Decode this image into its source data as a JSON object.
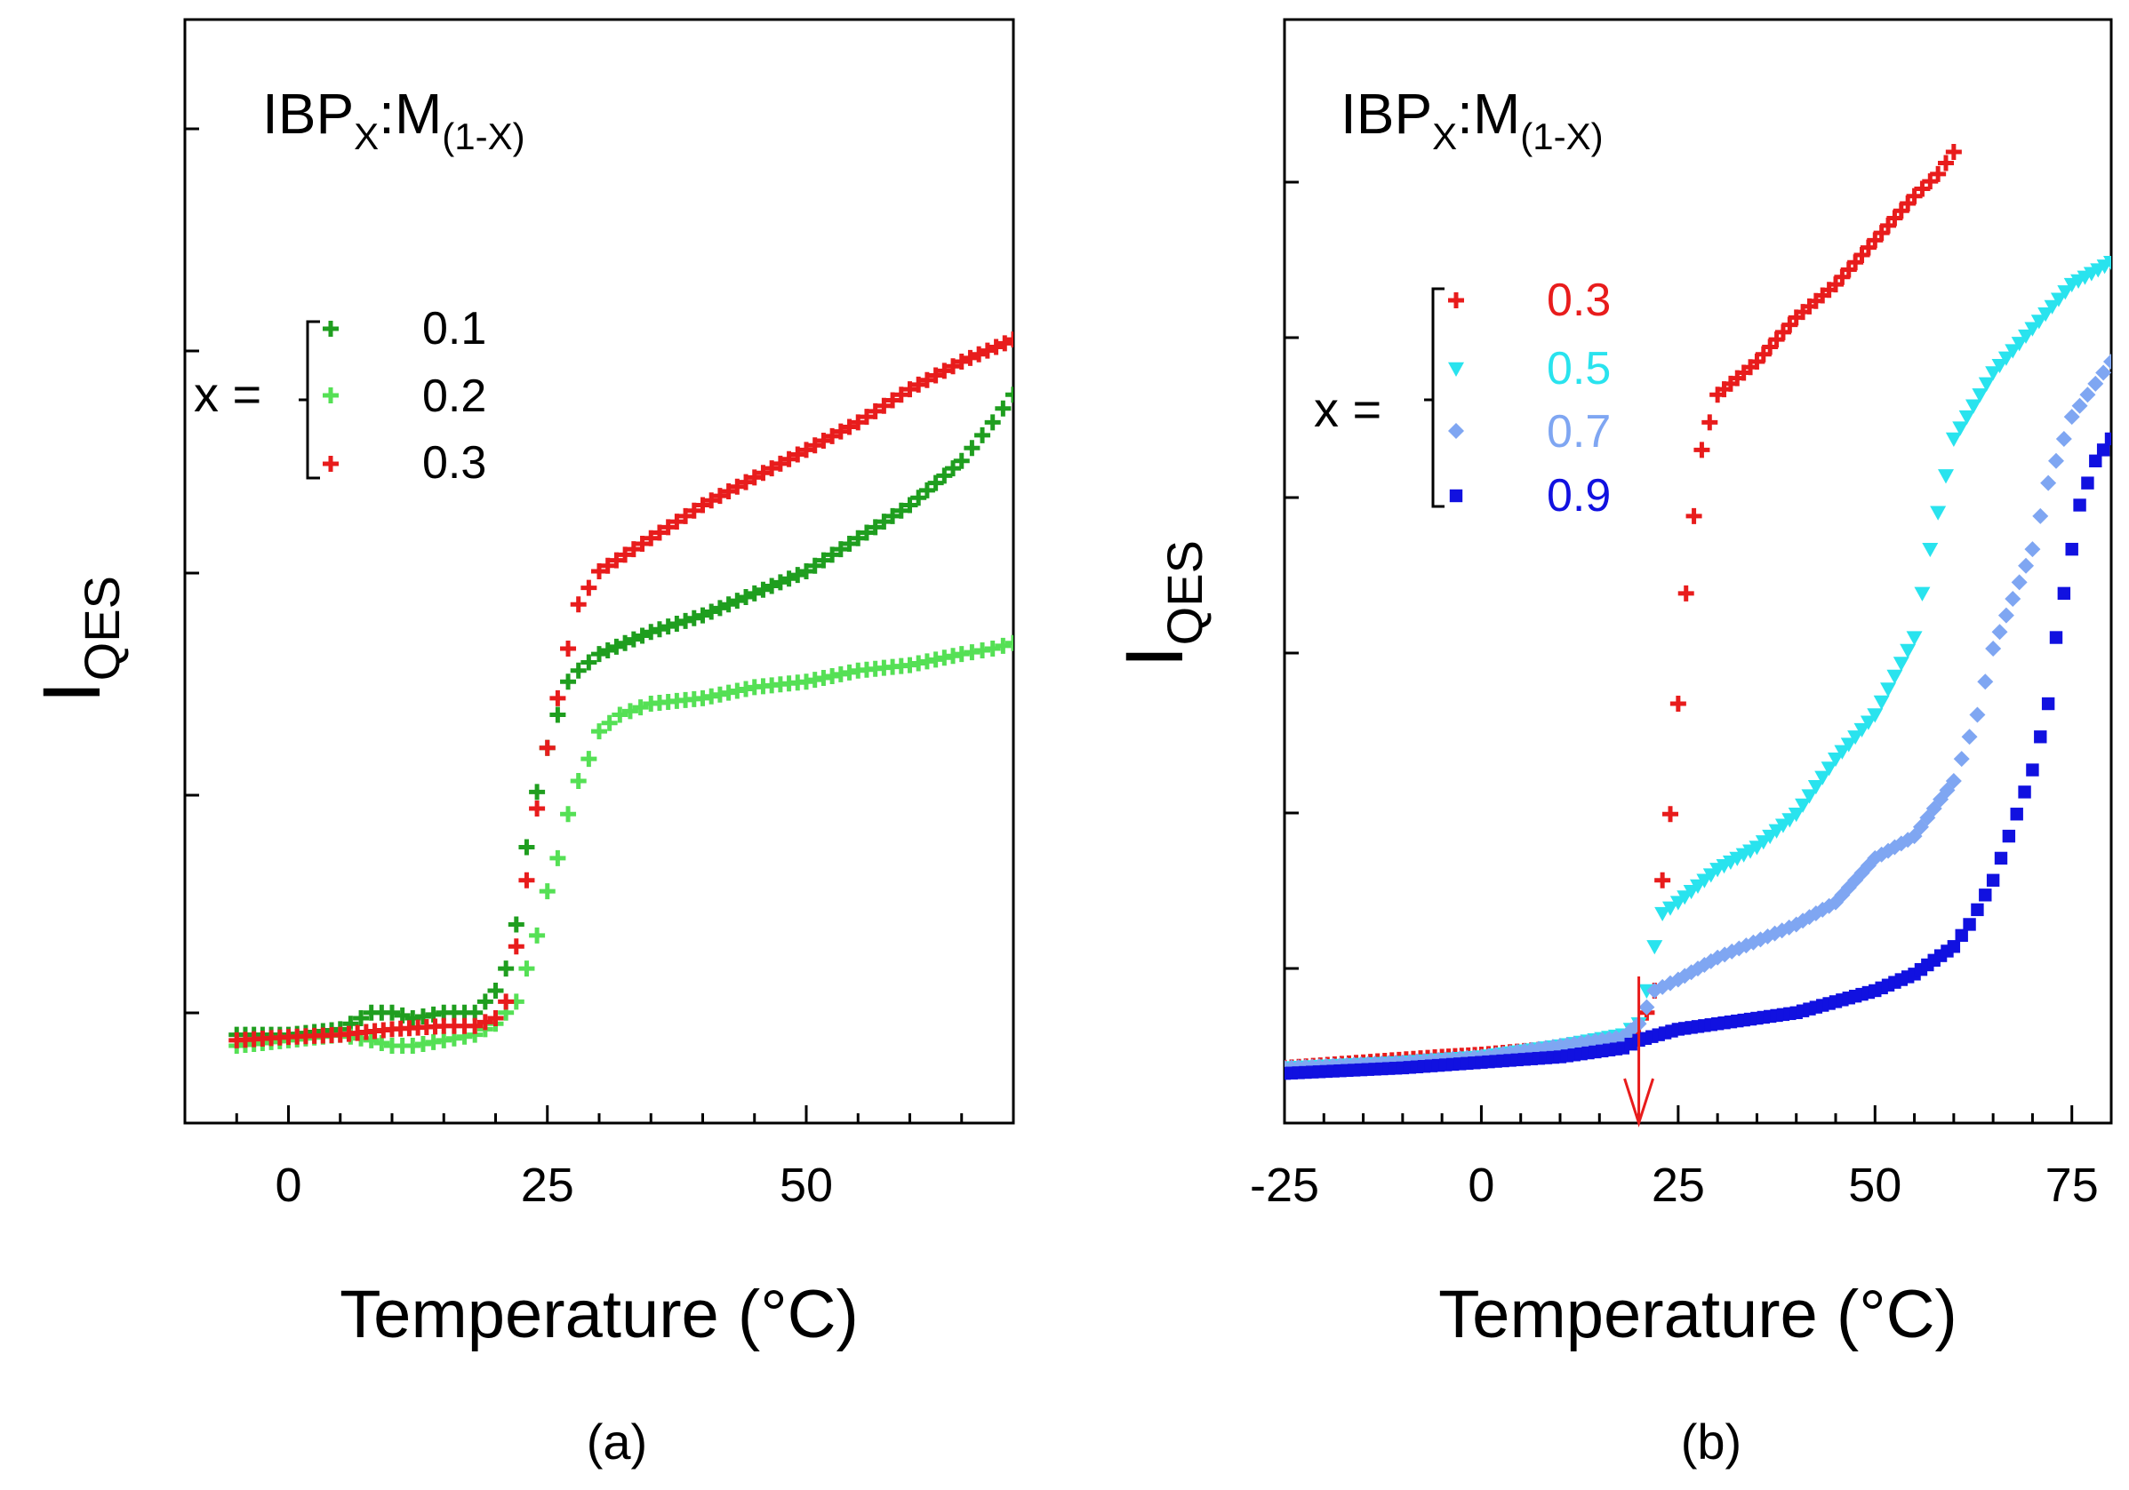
{
  "chart_data": [
    {
      "type": "scatter",
      "panel_label": "(a)",
      "title": "IBP",
      "title_sub1": "X",
      "title_mid": ":M",
      "title_sub2": "(1-X)",
      "xlabel": "Temperature (°C)",
      "ylabel": "I",
      "ylabel_sub": "QES",
      "xlim": [
        -10,
        70
      ],
      "ylim": [
        0,
        1
      ],
      "x_ticks": [
        0,
        25,
        50
      ],
      "y_axis_tick_labels": false,
      "legend": {
        "prefix": "x =",
        "placement": "left"
      },
      "series": [
        {
          "name": "0.1",
          "color": "#1f9e1f",
          "marker": "plus",
          "points": [
            [
              -5,
              0.08
            ],
            [
              0,
              0.08
            ],
            [
              5,
              0.085
            ],
            [
              8,
              0.1
            ],
            [
              10,
              0.1
            ],
            [
              12,
              0.095
            ],
            [
              15,
              0.1
            ],
            [
              18,
              0.1
            ],
            [
              20,
              0.12
            ],
            [
              21,
              0.14
            ],
            [
              22,
              0.18
            ],
            [
              23,
              0.25
            ],
            [
              24,
              0.3
            ],
            [
              25,
              0.34
            ],
            [
              26,
              0.37
            ],
            [
              27,
              0.4
            ],
            [
              28,
              0.41
            ],
            [
              30,
              0.425
            ],
            [
              35,
              0.445
            ],
            [
              40,
              0.46
            ],
            [
              45,
              0.48
            ],
            [
              50,
              0.5
            ],
            [
              55,
              0.53
            ],
            [
              60,
              0.56
            ],
            [
              65,
              0.6
            ],
            [
              68,
              0.635
            ],
            [
              70,
              0.66
            ]
          ]
        },
        {
          "name": "0.2",
          "color": "#55e055",
          "marker": "plus",
          "points": [
            [
              -5,
              0.07
            ],
            [
              0,
              0.075
            ],
            [
              5,
              0.08
            ],
            [
              8,
              0.075
            ],
            [
              10,
              0.07
            ],
            [
              12,
              0.07
            ],
            [
              15,
              0.075
            ],
            [
              18,
              0.08
            ],
            [
              20,
              0.09
            ],
            [
              22,
              0.11
            ],
            [
              23,
              0.14
            ],
            [
              24,
              0.17
            ],
            [
              25,
              0.21
            ],
            [
              26,
              0.24
            ],
            [
              27,
              0.28
            ],
            [
              28,
              0.31
            ],
            [
              29,
              0.33
            ],
            [
              30,
              0.355
            ],
            [
              32,
              0.37
            ],
            [
              35,
              0.38
            ],
            [
              40,
              0.385
            ],
            [
              45,
              0.395
            ],
            [
              50,
              0.4
            ],
            [
              55,
              0.41
            ],
            [
              60,
              0.415
            ],
            [
              65,
              0.425
            ],
            [
              68,
              0.43
            ],
            [
              70,
              0.435
            ]
          ]
        },
        {
          "name": "0.3",
          "color": "#e81c1c",
          "marker": "plus",
          "points": [
            [
              -5,
              0.075
            ],
            [
              0,
              0.078
            ],
            [
              5,
              0.08
            ],
            [
              10,
              0.085
            ],
            [
              15,
              0.088
            ],
            [
              18,
              0.088
            ],
            [
              20,
              0.095
            ],
            [
              21,
              0.11
            ],
            [
              22,
              0.16
            ],
            [
              23,
              0.22
            ],
            [
              24,
              0.285
            ],
            [
              25,
              0.34
            ],
            [
              26,
              0.385
            ],
            [
              27,
              0.43
            ],
            [
              28,
              0.47
            ],
            [
              30,
              0.5
            ],
            [
              35,
              0.53
            ],
            [
              40,
              0.56
            ],
            [
              45,
              0.585
            ],
            [
              50,
              0.61
            ],
            [
              55,
              0.635
            ],
            [
              60,
              0.665
            ],
            [
              65,
              0.69
            ],
            [
              70,
              0.71
            ]
          ]
        }
      ]
    },
    {
      "type": "scatter",
      "panel_label": "(b)",
      "title": "IBP",
      "title_sub1": "X",
      "title_mid": ":M",
      "title_sub2": "(1-X)",
      "xlabel": "Temperature (°C)",
      "ylabel": "I",
      "ylabel_sub": "QES",
      "xlim": [
        -25,
        80
      ],
      "ylim": [
        0,
        1
      ],
      "x_ticks": [
        -25,
        0,
        25,
        50,
        75
      ],
      "y_axis_tick_labels": false,
      "annotation": {
        "type": "arrow",
        "x": 20,
        "color": "#e81c1c"
      },
      "legend": {
        "prefix": "x =",
        "placement": "left"
      },
      "series": [
        {
          "name": "0.3",
          "color": "#e81c1c",
          "marker": "plus",
          "points": [
            [
              -25,
              0.05
            ],
            [
              -15,
              0.055
            ],
            [
              -5,
              0.06
            ],
            [
              0,
              0.062
            ],
            [
              10,
              0.068
            ],
            [
              18,
              0.072
            ],
            [
              20,
              0.08
            ],
            [
              22,
              0.12
            ],
            [
              23,
              0.22
            ],
            [
              24,
              0.28
            ],
            [
              25,
              0.38
            ],
            [
              26,
              0.48
            ],
            [
              27,
              0.55
            ],
            [
              28,
              0.61
            ],
            [
              30,
              0.66
            ],
            [
              35,
              0.69
            ],
            [
              40,
              0.73
            ],
            [
              45,
              0.76
            ],
            [
              50,
              0.8
            ],
            [
              55,
              0.84
            ],
            [
              58,
              0.86
            ],
            [
              60,
              0.88
            ]
          ]
        },
        {
          "name": "0.5",
          "color": "#29e3ee",
          "marker": "triangle-down",
          "points": [
            [
              -25,
              0.05
            ],
            [
              -10,
              0.055
            ],
            [
              0,
              0.06
            ],
            [
              10,
              0.07
            ],
            [
              18,
              0.08
            ],
            [
              20,
              0.09
            ],
            [
              21,
              0.12
            ],
            [
              22,
              0.16
            ],
            [
              23,
              0.19
            ],
            [
              25,
              0.2
            ],
            [
              30,
              0.23
            ],
            [
              35,
              0.25
            ],
            [
              40,
              0.28
            ],
            [
              45,
              0.33
            ],
            [
              50,
              0.37
            ],
            [
              55,
              0.44
            ],
            [
              57,
              0.52
            ],
            [
              60,
              0.62
            ],
            [
              65,
              0.68
            ],
            [
              70,
              0.72
            ],
            [
              75,
              0.76
            ],
            [
              80,
              0.78
            ]
          ]
        },
        {
          "name": "0.7",
          "color": "#7fa6f2",
          "marker": "diamond",
          "points": [
            [
              -25,
              0.05
            ],
            [
              -10,
              0.055
            ],
            [
              0,
              0.06
            ],
            [
              10,
              0.07
            ],
            [
              18,
              0.078
            ],
            [
              20,
              0.09
            ],
            [
              22,
              0.12
            ],
            [
              25,
              0.13
            ],
            [
              30,
              0.15
            ],
            [
              40,
              0.18
            ],
            [
              45,
              0.2
            ],
            [
              50,
              0.24
            ],
            [
              55,
              0.26
            ],
            [
              60,
              0.31
            ],
            [
              63,
              0.37
            ],
            [
              65,
              0.43
            ],
            [
              70,
              0.52
            ],
            [
              72,
              0.58
            ],
            [
              75,
              0.64
            ],
            [
              78,
              0.67
            ],
            [
              80,
              0.69
            ]
          ]
        },
        {
          "name": "0.9",
          "color": "#1111e0",
          "marker": "square",
          "points": [
            [
              -25,
              0.045
            ],
            [
              -10,
              0.05
            ],
            [
              0,
              0.055
            ],
            [
              10,
              0.06
            ],
            [
              18,
              0.068
            ],
            [
              20,
              0.075
            ],
            [
              25,
              0.085
            ],
            [
              30,
              0.09
            ],
            [
              35,
              0.095
            ],
            [
              40,
              0.1
            ],
            [
              45,
              0.11
            ],
            [
              50,
              0.12
            ],
            [
              55,
              0.135
            ],
            [
              60,
              0.16
            ],
            [
              62,
              0.18
            ],
            [
              65,
              0.22
            ],
            [
              67,
              0.26
            ],
            [
              70,
              0.32
            ],
            [
              72,
              0.38
            ],
            [
              73,
              0.44
            ],
            [
              74,
              0.48
            ],
            [
              75,
              0.52
            ],
            [
              76,
              0.56
            ],
            [
              78,
              0.6
            ],
            [
              80,
              0.62
            ]
          ]
        }
      ]
    }
  ]
}
